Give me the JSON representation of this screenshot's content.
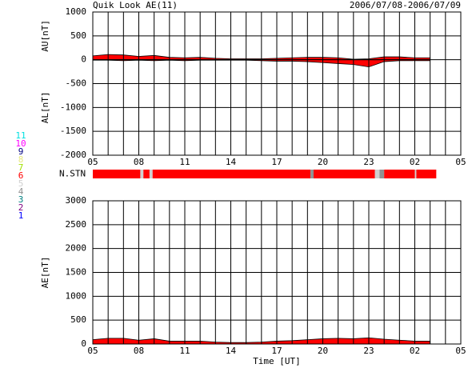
{
  "header": {
    "title": "Quik Look AE(11)",
    "date_range": "2006/07/08-2006/07/09"
  },
  "chart_data": [
    {
      "type": "area",
      "ylabels": [
        "AU[nT]",
        "AL[nT]"
      ],
      "x": [
        0,
        1,
        2,
        3,
        4,
        5,
        6,
        7,
        8,
        9,
        10,
        11,
        12,
        13,
        14,
        15,
        16,
        17,
        18,
        19,
        20,
        21,
        22
      ],
      "series": [
        {
          "color": "#ff0000",
          "values": [
            80,
            110,
            100,
            70,
            90,
            50,
            40,
            50,
            30,
            20,
            20,
            20,
            30,
            40,
            50,
            50,
            40,
            10,
            20,
            60,
            60,
            40,
            40
          ]
        },
        {
          "color": "#ff0000",
          "values": [
            -10,
            -10,
            -20,
            -10,
            -20,
            -10,
            -20,
            -10,
            -10,
            -10,
            -10,
            -20,
            -30,
            -30,
            -40,
            -60,
            -80,
            -100,
            -150,
            -40,
            -20,
            -20,
            -20
          ]
        }
      ],
      "xlim": [
        0,
        24
      ],
      "xticks": [
        {
          "value": 0,
          "label": "05"
        },
        {
          "value": 3,
          "label": "08"
        },
        {
          "value": 6,
          "label": "11"
        },
        {
          "value": 9,
          "label": "14"
        },
        {
          "value": 12,
          "label": "17"
        },
        {
          "value": 15,
          "label": "20"
        },
        {
          "value": 18,
          "label": "23"
        },
        {
          "value": 21,
          "label": "02"
        },
        {
          "value": 24,
          "label": "05"
        }
      ],
      "minor_grid_interval": 1,
      "ylim": [
        -2000,
        1000
      ],
      "yticks": [
        -2000,
        -1500,
        -1000,
        -500,
        0,
        500,
        1000
      ],
      "grid": true
    },
    {
      "type": "stations",
      "label": "N.STN",
      "starts": [
        0,
        3.1,
        3.3,
        3.7,
        3.9,
        14.2,
        14.4,
        18.4,
        18.7,
        19.0,
        21.0,
        21.1
      ],
      "ends": [
        3.1,
        3.3,
        3.7,
        3.9,
        14.2,
        14.4,
        18.4,
        18.7,
        19.0,
        21.0,
        21.1,
        22.4
      ],
      "values": [
        6,
        5,
        6,
        5,
        6,
        4,
        6,
        5,
        4,
        6,
        5,
        6
      ],
      "legend": [
        {
          "value": 11,
          "color": "#00e0e0"
        },
        {
          "value": 10,
          "color": "#ff00ff"
        },
        {
          "value": 9,
          "color": "#000080"
        },
        {
          "value": 8,
          "color": "#e8e880"
        },
        {
          "value": 7,
          "color": "#a0e000"
        },
        {
          "value": 6,
          "color": "#ff0000"
        },
        {
          "value": 5,
          "color": "#d0d0d0"
        },
        {
          "value": 4,
          "color": "#909090"
        },
        {
          "value": 3,
          "color": "#008080"
        },
        {
          "value": 2,
          "color": "#800080"
        },
        {
          "value": 1,
          "color": "#0000ff"
        }
      ]
    },
    {
      "type": "area",
      "ylabels": [
        "AE[nT]"
      ],
      "xlabel": "Time [UT]",
      "x": [
        0,
        1,
        2,
        3,
        4,
        5,
        6,
        7,
        8,
        9,
        10,
        11,
        12,
        13,
        14,
        15,
        16,
        17,
        18,
        19,
        20,
        21,
        22
      ],
      "series": [
        {
          "color": "#ff0000",
          "values": [
            90,
            120,
            120,
            80,
            110,
            60,
            60,
            60,
            40,
            30,
            30,
            40,
            60,
            70,
            90,
            110,
            120,
            110,
            130,
            100,
            80,
            60,
            60
          ]
        }
      ],
      "xlim": [
        0,
        24
      ],
      "xticks": [
        {
          "value": 0,
          "label": "05"
        },
        {
          "value": 3,
          "label": "08"
        },
        {
          "value": 6,
          "label": "11"
        },
        {
          "value": 9,
          "label": "14"
        },
        {
          "value": 12,
          "label": "17"
        },
        {
          "value": 15,
          "label": "20"
        },
        {
          "value": 18,
          "label": "23"
        },
        {
          "value": 21,
          "label": "02"
        },
        {
          "value": 24,
          "label": "05"
        }
      ],
      "minor_grid_interval": 1,
      "ylim": [
        0,
        3000
      ],
      "yticks": [
        0,
        500,
        1000,
        1500,
        2000,
        2500,
        3000
      ],
      "grid": true
    }
  ]
}
